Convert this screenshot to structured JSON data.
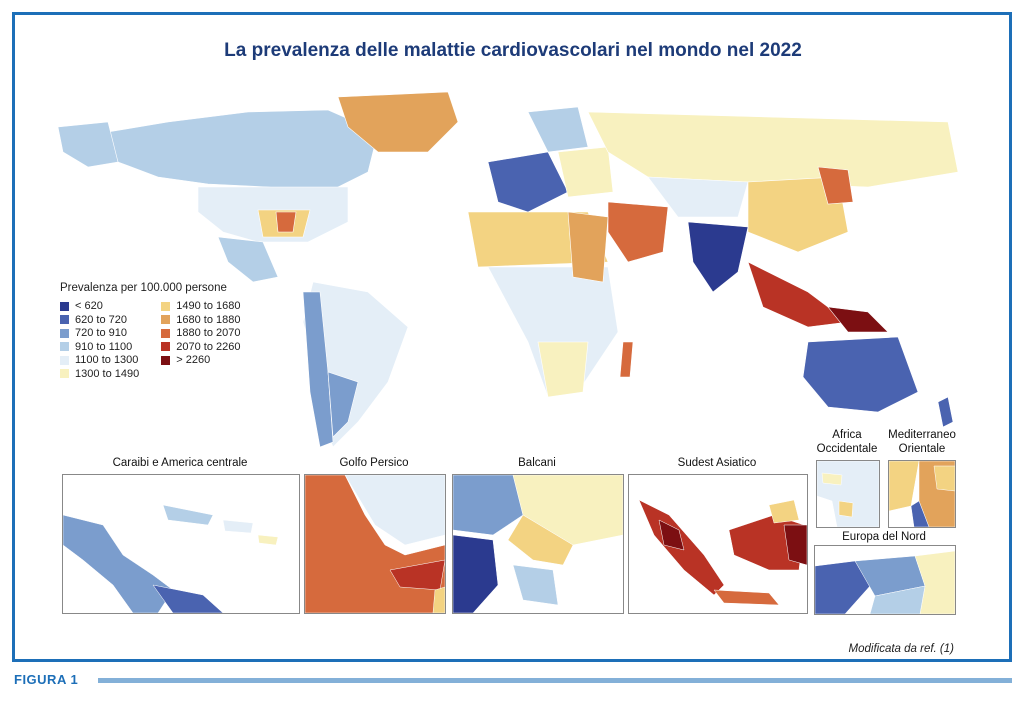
{
  "title": "La prevalenza delle malattie cardiovascolari nel mondo nel 2022",
  "legend": {
    "title": "Prevalenza per 100.000 persone",
    "classes": [
      {
        "label": "< 620",
        "color": "#2b3a8f"
      },
      {
        "label": "620  to  720",
        "color": "#4a63b0"
      },
      {
        "label": "720  to  910",
        "color": "#7b9dcd"
      },
      {
        "label": "910  to  1100",
        "color": "#b4cfe7"
      },
      {
        "label": "1100  to  1300",
        "color": "#e4eef7"
      },
      {
        "label": "1300  to  1490",
        "color": "#f8f1bf"
      },
      {
        "label": "1490  to  1680",
        "color": "#f3d382"
      },
      {
        "label": "1680  to  1880",
        "color": "#e2a35b"
      },
      {
        "label": "1880  to  2070",
        "color": "#d66a3d"
      },
      {
        "label": "2070  to  2260",
        "color": "#b93325"
      },
      {
        "label": "> 2260",
        "color": "#7c0f12"
      }
    ]
  },
  "insets": {
    "caraibi": "Caraibi e America centrale",
    "golfo": "Golfo Persico",
    "balcani": "Balcani",
    "sudest": "Sudest Asiatico",
    "africa_occ": "Africa\nOccidentale",
    "mediterraneo": "Mediterraneo\nOrientale",
    "europa_nord": "Europa del Nord"
  },
  "credit": "Modificata da ref. (1)",
  "figure_label": "FIGURA 1"
}
